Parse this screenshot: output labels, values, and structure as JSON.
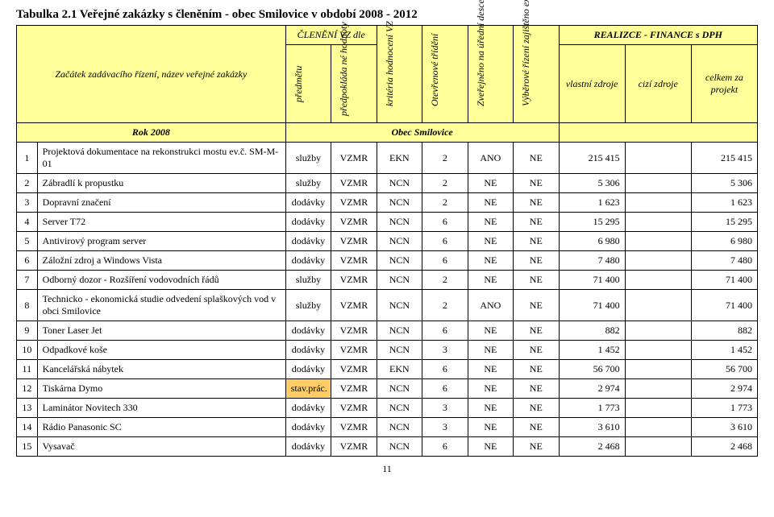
{
  "title": "Tabulka 2.1 Veřejné zakázky  s členěním  - obec Smilovice v období 2008 - 2012",
  "header": {
    "main_left": "Začátek zadávacího řízení,   název veřejné zakázky",
    "cleneni": "ČLENĚNÍ VZ dle",
    "predmetu": "předmětu",
    "predpokladane": "předpokláda né hodnoty",
    "kriteria": "kritéria hodnocení VZ",
    "otevrene": "Otevřenové třídění",
    "zverejneno": "Zveřejněno na úřední desce nebo profilu zadavatele",
    "vyberove": "Výběrové řízení zajištěno externí firmou",
    "realizace": "REALIZCE - FINANCE s DPH",
    "vlastni": "vlastní zdroje",
    "cizi": "cizí zdroje",
    "celkem": "celkem za projekt",
    "rok": "Rok 2008",
    "obec": "Obec Smilovice"
  },
  "rows": [
    {
      "n": "1",
      "name": "Projektová dokumentace na rekonstrukci mostu ev.č. SM-M-01",
      "p": "služby",
      "h": "VZMR",
      "k": "EKN",
      "o": "2",
      "z": "ANO",
      "v": "NE",
      "vl": "215 415",
      "ci": "",
      "ce": "215 415"
    },
    {
      "n": "2",
      "name": "Zábradlí k propustku",
      "p": "služby",
      "h": "VZMR",
      "k": "NCN",
      "o": "2",
      "z": "NE",
      "v": "NE",
      "vl": "5 306",
      "ci": "",
      "ce": "5 306"
    },
    {
      "n": "3",
      "name": "Dopravní značení",
      "p": "dodávky",
      "h": "VZMR",
      "k": "NCN",
      "o": "2",
      "z": "NE",
      "v": "NE",
      "vl": "1 623",
      "ci": "",
      "ce": "1 623"
    },
    {
      "n": "4",
      "name": "Server T72",
      "p": "dodávky",
      "h": "VZMR",
      "k": "NCN",
      "o": "6",
      "z": "NE",
      "v": "NE",
      "vl": "15 295",
      "ci": "",
      "ce": "15 295"
    },
    {
      "n": "5",
      "name": "Antivirový program server",
      "p": "dodávky",
      "h": "VZMR",
      "k": "NCN",
      "o": "6",
      "z": "NE",
      "v": "NE",
      "vl": "6 980",
      "ci": "",
      "ce": "6 980"
    },
    {
      "n": "6",
      "name": "Záložní zdroj a Windows Vista",
      "p": "dodávky",
      "h": "VZMR",
      "k": "NCN",
      "o": "6",
      "z": "NE",
      "v": "NE",
      "vl": "7 480",
      "ci": "",
      "ce": "7 480"
    },
    {
      "n": "7",
      "name": "Odborný dozor - Rozšíření vodovodních řádů",
      "p": "služby",
      "h": "VZMR",
      "k": "NCN",
      "o": "2",
      "z": "NE",
      "v": "NE",
      "vl": "71 400",
      "ci": "",
      "ce": "71 400"
    },
    {
      "n": "8",
      "name": "Technicko - ekonomická studie odvedení splaškových vod v obci Smilovice",
      "p": "služby",
      "h": "VZMR",
      "k": "NCN",
      "o": "2",
      "z": "ANO",
      "v": "NE",
      "vl": "71 400",
      "ci": "",
      "ce": "71 400"
    },
    {
      "n": "9",
      "name": "Toner Laser Jet",
      "p": "dodávky",
      "h": "VZMR",
      "k": "NCN",
      "o": "6",
      "z": "NE",
      "v": "NE",
      "vl": "882",
      "ci": "",
      "ce": "882"
    },
    {
      "n": "10",
      "name": "Odpadkové koše",
      "p": "dodávky",
      "h": "VZMR",
      "k": "NCN",
      "o": "3",
      "z": "NE",
      "v": "NE",
      "vl": "1 452",
      "ci": "",
      "ce": "1 452"
    },
    {
      "n": "11",
      "name": "Kancelářská nábytek",
      "p": "dodávky",
      "h": "VZMR",
      "k": "EKN",
      "o": "6",
      "z": "NE",
      "v": "NE",
      "vl": "56 700",
      "ci": "",
      "ce": "56 700"
    },
    {
      "n": "12",
      "name": "Tiskárna Dymo",
      "p": "stav.prác.",
      "h": "VZMR",
      "k": "NCN",
      "o": "6",
      "z": "NE",
      "v": "NE",
      "vl": "2 974",
      "ci": "",
      "ce": "2 974",
      "stav": true
    },
    {
      "n": "13",
      "name": "Laminátor Novitech 330",
      "p": "dodávky",
      "h": "VZMR",
      "k": "NCN",
      "o": "3",
      "z": "NE",
      "v": "NE",
      "vl": "1 773",
      "ci": "",
      "ce": "1 773"
    },
    {
      "n": "14",
      "name": "Rádio Panasonic SC",
      "p": "dodávky",
      "h": "VZMR",
      "k": "NCN",
      "o": "3",
      "z": "NE",
      "v": "NE",
      "vl": "3 610",
      "ci": "",
      "ce": "3 610"
    },
    {
      "n": "15",
      "name": "Vysavač",
      "p": "dodávky",
      "h": "VZMR",
      "k": "NCN",
      "o": "6",
      "z": "NE",
      "v": "NE",
      "vl": "2 468",
      "ci": "",
      "ce": "2 468"
    }
  ],
  "page_number": "11",
  "style": {
    "highlight_bg": "#ffff99",
    "stav_bg": "#ffcc66",
    "border_color": "#000000",
    "font_family": "Times New Roman",
    "base_font_size": 12
  }
}
